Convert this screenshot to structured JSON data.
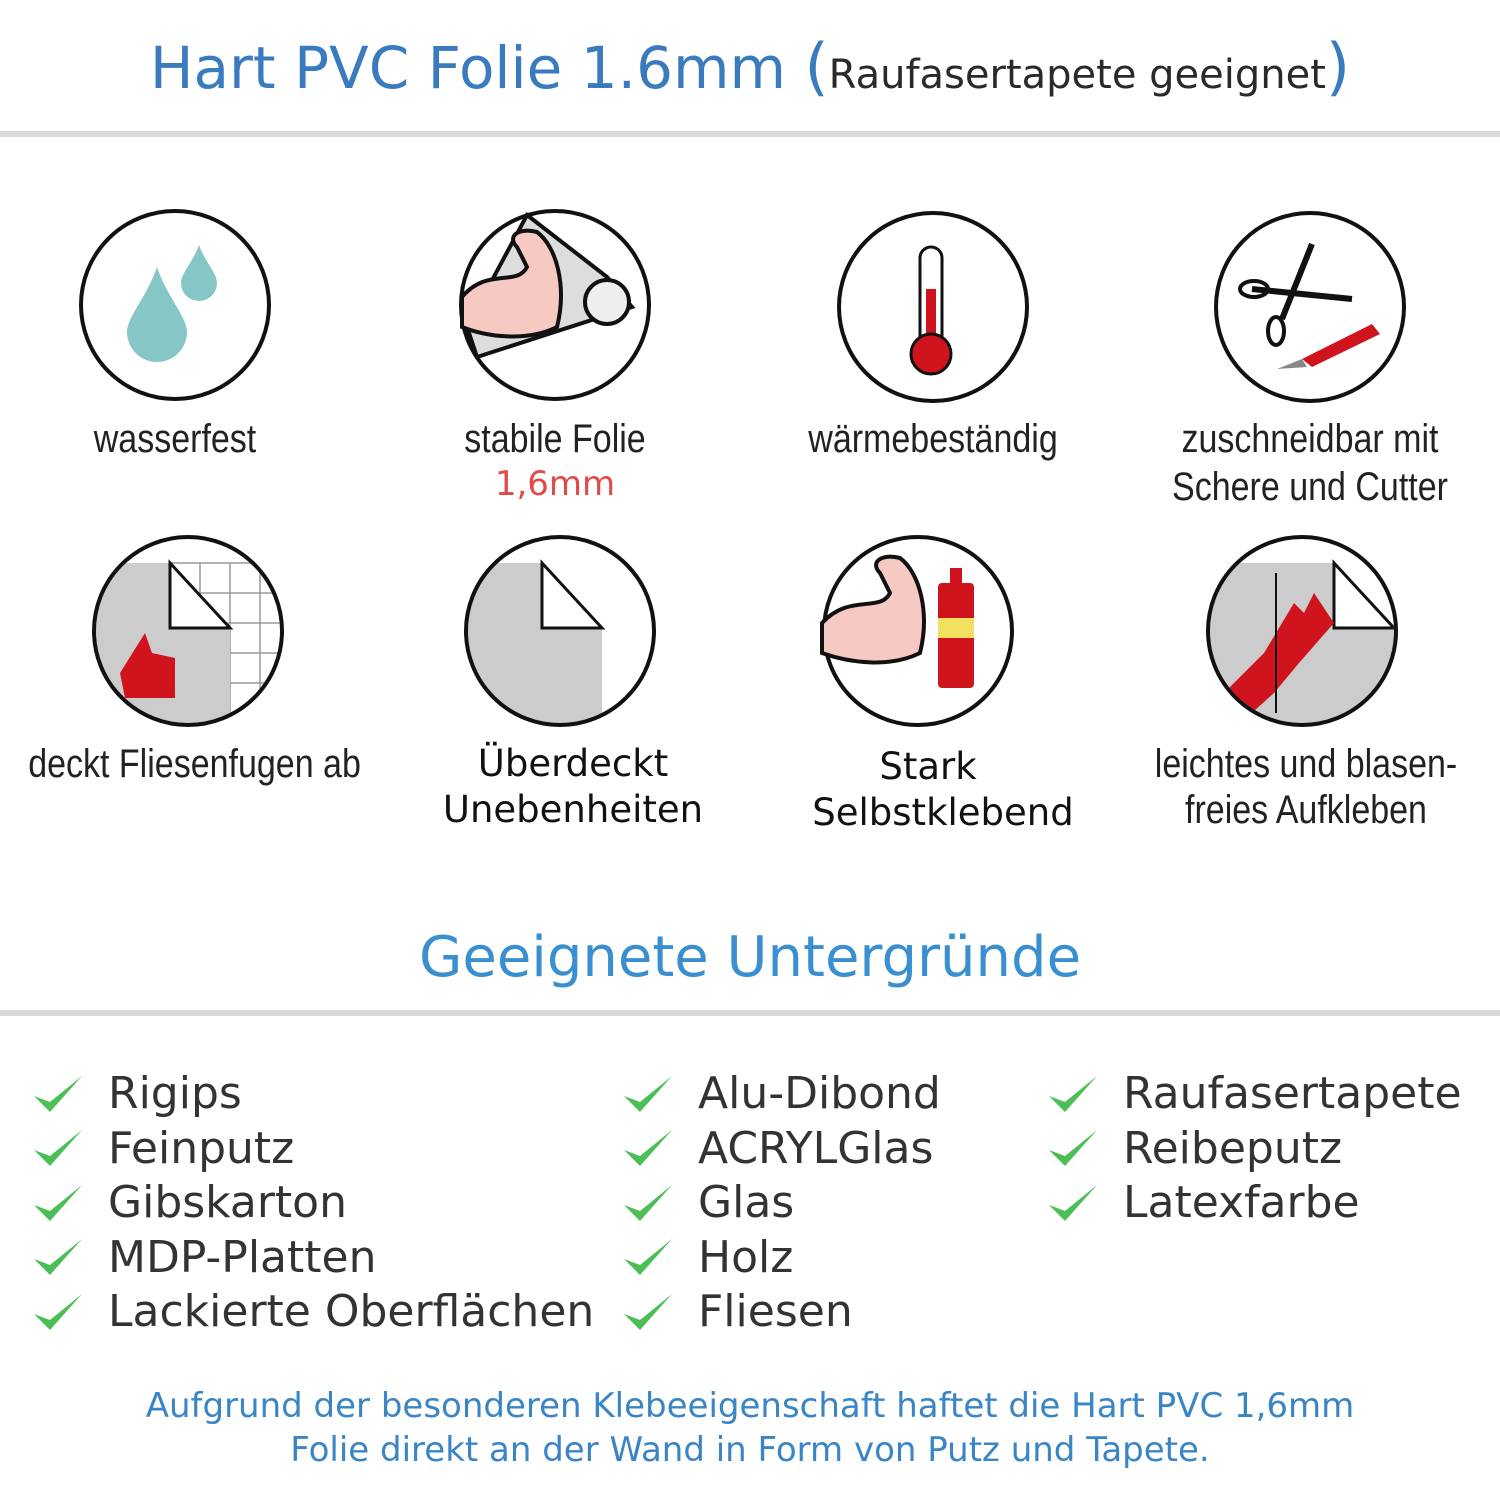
{
  "header": {
    "title": "Hart PVC Folie 1.6mm",
    "paren_open": "(",
    "subtitle": "Raufasertapete geeignet",
    "paren_close": ")"
  },
  "features": [
    {
      "icon": "water-drops-icon",
      "label": "wasserfest"
    },
    {
      "icon": "strong-arm-foil-icon",
      "label": "stabile Folie",
      "detail": "1,6mm"
    },
    {
      "icon": "thermometer-icon",
      "label": "wärmebeständig"
    },
    {
      "icon": "scissors-cutter-icon",
      "label": "zuschneidbar mit",
      "label2": "Schere und Cutter"
    },
    {
      "icon": "tile-cover-thumbs-up-icon",
      "label": "deckt Fliesenfugen ab"
    },
    {
      "icon": "foil-sheet-icon",
      "label": "Überdeckt",
      "label2": "Unebenheiten"
    },
    {
      "icon": "strong-arm-glue-icon",
      "label": "Stark",
      "label2": "Selbstklebend"
    },
    {
      "icon": "hand-smoothing-icon",
      "label": "leichtes und blasen-",
      "label2": "freies Aufkleben"
    }
  ],
  "surfaces": {
    "title": "Geeignete Untergründe",
    "columns": [
      [
        "Rigips",
        "Feinputz",
        "Gibskarton",
        "MDP-Platten",
        "Lackierte Oberflächen"
      ],
      [
        "Alu-Dibond",
        "ACRYLGlas",
        "Glas",
        "Holz",
        "Fliesen"
      ],
      [
        "Raufasertapete",
        "Reibeputz",
        "Latexfarbe"
      ]
    ]
  },
  "footer": {
    "line1": "Aufgrund der besonderen Klebeeigenschaft haftet die Hart PVC 1,6mm",
    "line2": "Folie direkt an der Wand in Form von Putz und Tapete."
  },
  "colors": {
    "title_blue": "#3a7bbf",
    "check_green": "#4bbf55",
    "accent_red": "#e24a4a",
    "icon_red": "#d0141e",
    "drop_teal": "#86c6c6"
  }
}
